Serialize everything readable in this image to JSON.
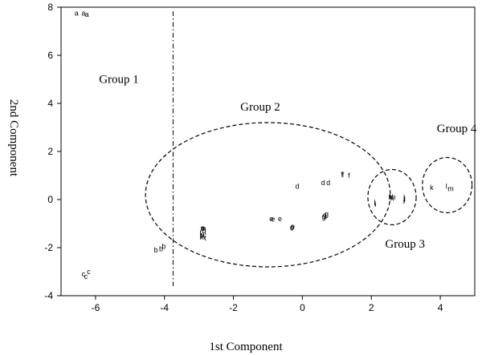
{
  "chart_data": {
    "type": "scatter",
    "xlabel": "1st Component",
    "ylabel": "2nd Component",
    "xlim": [
      -7,
      5
    ],
    "ylim": [
      -4,
      8
    ],
    "xticks": [
      -6,
      -4,
      -2,
      0,
      2,
      4
    ],
    "yticks": [
      -4,
      -2,
      0,
      2,
      4,
      6,
      8
    ],
    "grid": false,
    "vline_x": -3.75,
    "group_labels": [
      {
        "text": "Group 1",
        "x": -5.9,
        "y": 4.85
      },
      {
        "text": "Group 2",
        "x": -1.8,
        "y": 3.7
      },
      {
        "text": "Group 3",
        "x": 2.4,
        "y": -2.0
      },
      {
        "text": "Group 4",
        "x": 3.9,
        "y": 2.8
      }
    ],
    "group_ellipses": [
      {
        "cx": -1.0,
        "cy": 0.2,
        "rx": 3.55,
        "ry": 3.0
      },
      {
        "cx": 2.6,
        "cy": 0.1,
        "rx": 0.7,
        "ry": 1.15
      },
      {
        "cx": 4.2,
        "cy": 0.6,
        "rx": 0.72,
        "ry": 1.15
      }
    ],
    "points": [
      {
        "label": "a",
        "x": -6.55,
        "y": 7.75
      },
      {
        "label": "a",
        "x": -6.35,
        "y": 7.75
      },
      {
        "label": "a",
        "x": -6.25,
        "y": 7.7
      },
      {
        "label": "b",
        "x": -4.25,
        "y": -2.1
      },
      {
        "label": "b",
        "x": -4.1,
        "y": -2.05
      },
      {
        "label": "b",
        "x": -4.02,
        "y": -1.95
      },
      {
        "label": "c",
        "x": -6.35,
        "y": -3.1
      },
      {
        "label": "c",
        "x": -6.2,
        "y": -3.0
      },
      {
        "label": "c",
        "x": -6.28,
        "y": -3.2
      },
      {
        "label": "d",
        "x": -0.15,
        "y": 0.55
      },
      {
        "label": "d",
        "x": 0.6,
        "y": 0.7
      },
      {
        "label": "d",
        "x": 0.75,
        "y": 0.7
      },
      {
        "label": "e",
        "x": -0.9,
        "y": -0.8
      },
      {
        "label": "e",
        "x": -0.65,
        "y": -0.8
      },
      {
        "label": "e",
        "x": -0.85,
        "y": -0.82
      },
      {
        "label": "f",
        "x": 1.15,
        "y": 1.05
      },
      {
        "label": "f",
        "x": 1.35,
        "y": 1.0
      },
      {
        "label": "f",
        "x": 1.18,
        "y": 1.02
      },
      {
        "label": "g",
        "x": 0.65,
        "y": -0.65
      },
      {
        "label": "g",
        "x": 0.7,
        "y": -0.6
      },
      {
        "label": "g",
        "x": 0.62,
        "y": -0.72
      },
      {
        "label": "h",
        "x": 2.55,
        "y": 0.1
      },
      {
        "label": "h",
        "x": 2.65,
        "y": 0.1
      },
      {
        "label": "h",
        "x": 2.6,
        "y": 0.05
      },
      {
        "label": "i",
        "x": 2.1,
        "y": -0.15
      },
      {
        "label": "i",
        "x": 2.12,
        "y": -0.2
      },
      {
        "label": "i",
        "x": 2.1,
        "y": -0.1
      },
      {
        "label": "j",
        "x": 2.95,
        "y": 0.1
      },
      {
        "label": "j",
        "x": 2.97,
        "y": 0.05
      },
      {
        "label": "j",
        "x": 2.95,
        "y": 0.0
      },
      {
        "label": "k",
        "x": 3.75,
        "y": 0.5
      },
      {
        "label": "l",
        "x": 4.18,
        "y": 0.55
      },
      {
        "label": "m",
        "x": 4.3,
        "y": 0.45
      },
      {
        "label": "n",
        "x": -2.9,
        "y": -1.2
      },
      {
        "label": "n",
        "x": -2.85,
        "y": -1.22
      },
      {
        "label": "n",
        "x": -2.88,
        "y": -1.18
      },
      {
        "label": "o",
        "x": -0.3,
        "y": -1.15
      },
      {
        "label": "o",
        "x": -0.28,
        "y": -1.12
      },
      {
        "label": "o",
        "x": -0.3,
        "y": -1.18
      },
      {
        "label": "p",
        "x": -2.9,
        "y": -1.45
      },
      {
        "label": "p",
        "x": -2.92,
        "y": -1.5
      },
      {
        "label": "q",
        "x": -2.85,
        "y": -1.3
      },
      {
        "label": "r",
        "x": -2.95,
        "y": -1.35
      },
      {
        "label": "s",
        "x": -2.88,
        "y": -1.55
      },
      {
        "label": "t",
        "x": -2.82,
        "y": -1.6
      }
    ]
  }
}
